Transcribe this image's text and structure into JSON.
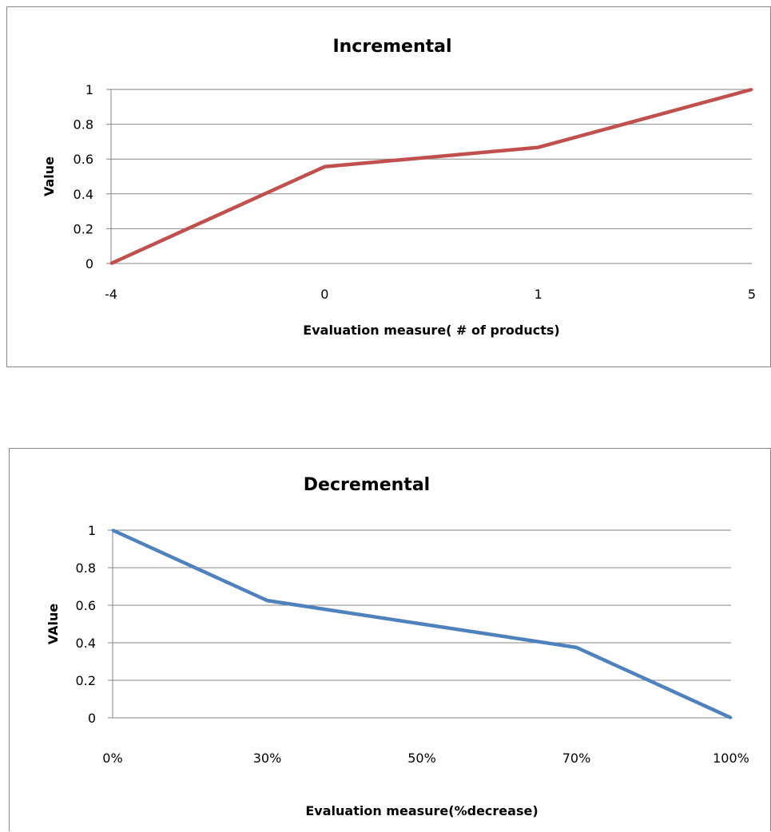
{
  "chart_data": [
    {
      "type": "line",
      "title": "Incremental",
      "xlabel": "Evaluation measure( # of products)",
      "ylabel": "Value",
      "categories": [
        "-4",
        "0",
        "1",
        "5"
      ],
      "series": [
        {
          "values": [
            0,
            0.556,
            0.667,
            1
          ],
          "color": "#c0504d"
        }
      ],
      "ylim": [
        0,
        1
      ],
      "yticks": [
        "0",
        "0.2",
        "0.4",
        "0.6",
        "0.8",
        "1"
      ],
      "grid": true,
      "legend": "none"
    },
    {
      "type": "line",
      "title": "Decremental",
      "xlabel": "Evaluation measure(%decrease)",
      "ylabel": "VAlue",
      "categories": [
        "0%",
        "30%",
        "50%",
        "70%",
        "100%"
      ],
      "series": [
        {
          "values": [
            1,
            0.625,
            0.5,
            0.375,
            0
          ],
          "color": "#4f81bd"
        }
      ],
      "ylim": [
        0,
        1
      ],
      "yticks": [
        "0",
        "0.2",
        "0.4",
        "0.6",
        "0.8",
        "1"
      ],
      "grid": true,
      "legend": "none"
    }
  ]
}
